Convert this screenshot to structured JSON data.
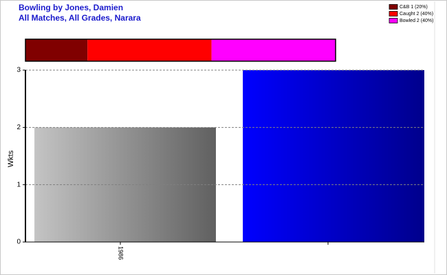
{
  "chart_data": [
    {
      "type": "bar",
      "title": "Bowling by Jones, Damien",
      "subtitle": "All Matches, All Grades, Narara",
      "y_label": "Wkts",
      "categories": [
        "1986",
        null
      ],
      "values": [
        2,
        3
      ],
      "colors": [
        [
          "#c4c4c4",
          "#606060"
        ],
        [
          "#0000ff",
          "#00008c"
        ]
      ],
      "ylim": [
        0,
        3
      ],
      "yticks": [
        0,
        1,
        2,
        3
      ],
      "grid": true
    },
    {
      "type": "proportion-bar",
      "series": [
        {
          "name": "C&B 1 (20%)",
          "color": "#800000",
          "values": [
            1
          ]
        },
        {
          "name": "Caught 2 (40%)",
          "color": "#ff0000",
          "values": [
            2
          ]
        },
        {
          "name": "Bowled 2 (40%)",
          "color": "#ff00ff",
          "values": [
            2
          ]
        }
      ]
    }
  ]
}
